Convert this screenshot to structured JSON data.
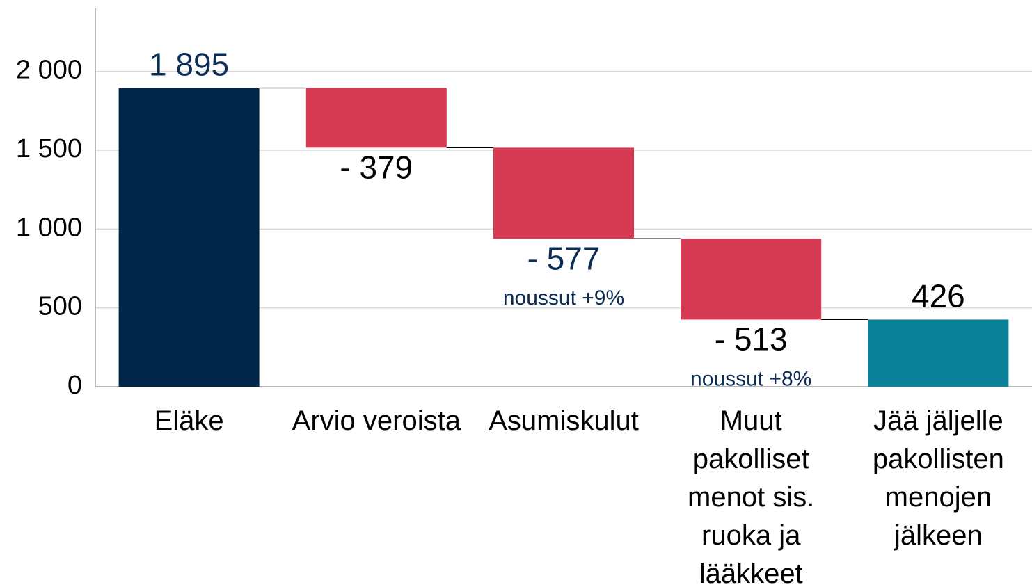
{
  "chart_data": {
    "type": "waterfall",
    "categories": [
      "Eläke",
      "Arvio veroista",
      "Asumiskulut",
      "Muut pakolliset menot sis. ruoka ja lääkkeet",
      "Jää jäljelle pakollisten menojen jälkeen"
    ],
    "values": [
      1895,
      -379,
      -577,
      -513,
      426
    ],
    "value_labels": [
      "1 895",
      "- 379",
      "- 577",
      "- 513",
      "426"
    ],
    "measure": [
      "absolute",
      "relative",
      "relative",
      "relative",
      "absolute"
    ],
    "colors": [
      "#00264a",
      "#d63a52",
      "#d63a52",
      "#d63a52",
      "#0a8196"
    ],
    "value_label_colors": [
      "#0b2d55",
      "#000000",
      "#0b2d55",
      "#000000",
      "#000000"
    ],
    "notes": [
      null,
      null,
      "noussut +9%",
      "noussut +8%",
      null
    ],
    "ylim": [
      0,
      2400
    ],
    "yticks": [
      0,
      500,
      {
        "value": 1000,
        "label": "1 000"
      },
      {
        "value": 1500,
        "label": "1 500"
      },
      {
        "value": 2000,
        "label": "2 000"
      }
    ],
    "grid": true
  }
}
